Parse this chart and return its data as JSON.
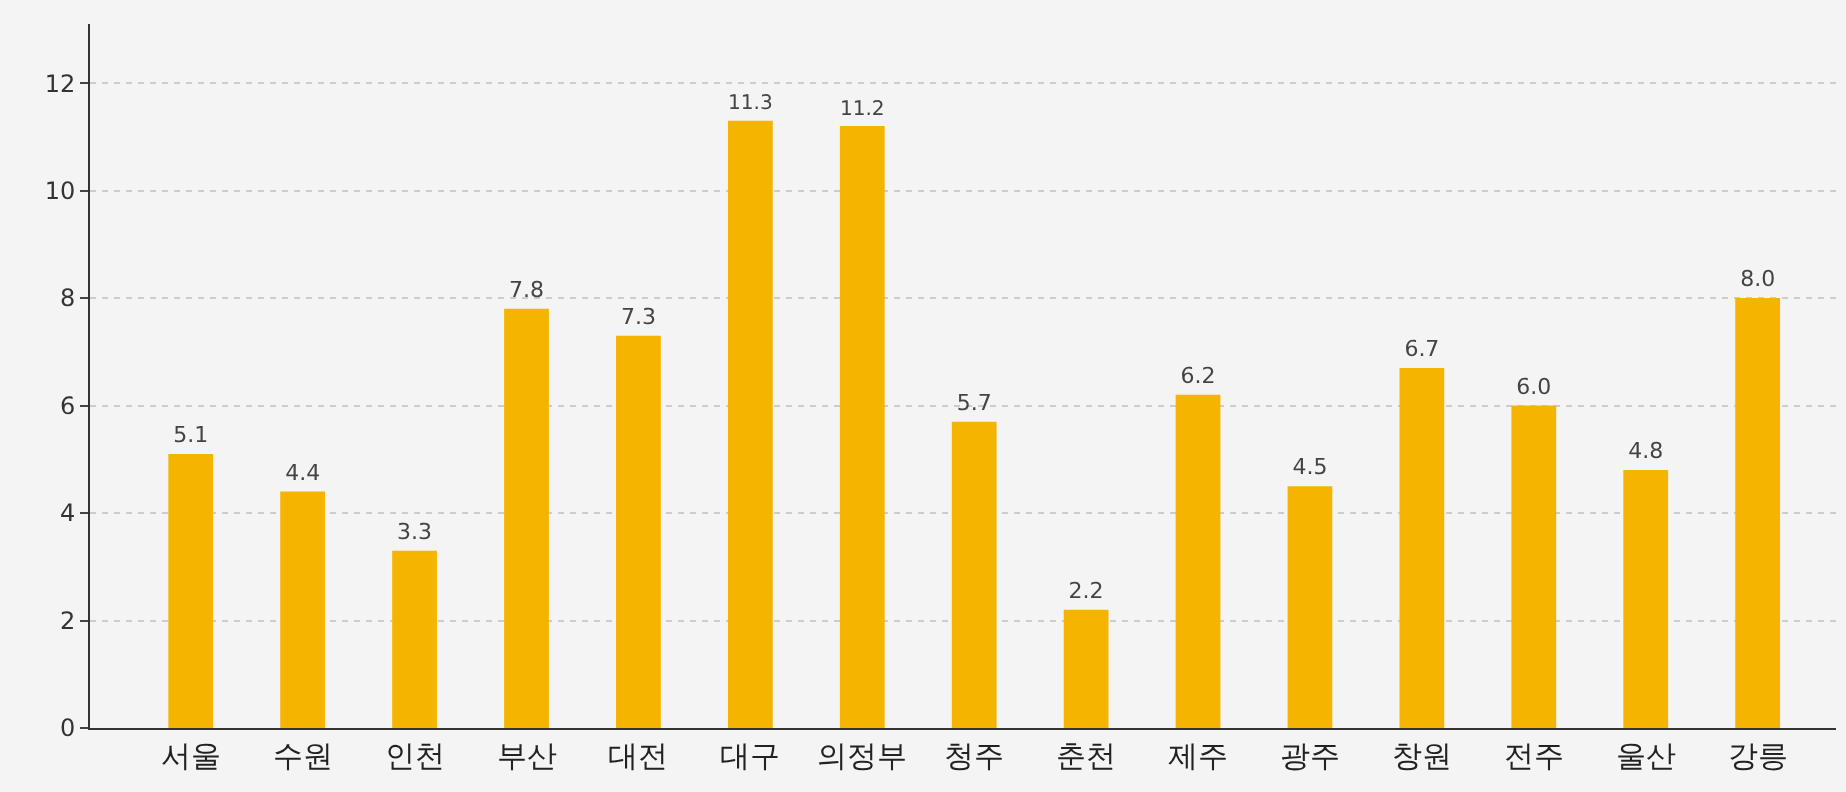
{
  "chart_data": {
    "type": "bar",
    "categories": [
      "서울",
      "수원",
      "인천",
      "부산",
      "대전",
      "대구",
      "의정부",
      "청주",
      "춘천",
      "제주",
      "광주",
      "창원",
      "전주",
      "울산",
      "강릉"
    ],
    "values": [
      5.1,
      4.4,
      3.3,
      7.8,
      7.3,
      11.3,
      11.2,
      5.7,
      2.2,
      6.2,
      4.5,
      6.7,
      6.0,
      4.8,
      8.0
    ],
    "value_labels": [
      "5.1",
      "4.4",
      "3.3",
      "7.8",
      "7.3",
      "11.3",
      "11.2",
      "5.7",
      "2.2",
      "6.2",
      "4.5",
      "6.7",
      "6.0",
      "4.8",
      "8.0"
    ],
    "color": "#f5b400",
    "ylim": [
      0,
      13.1
    ],
    "yticks": [
      0,
      2,
      4,
      6,
      8,
      10,
      12
    ],
    "grid": "y"
  }
}
